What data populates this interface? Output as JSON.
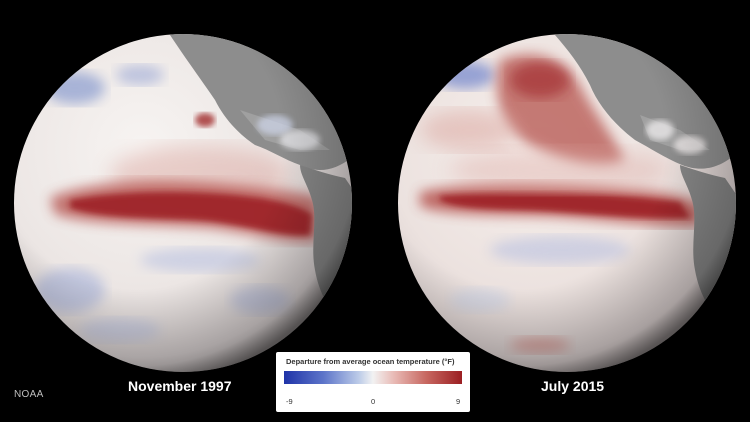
{
  "panels": [
    {
      "caption": "November 1997"
    },
    {
      "caption": "July 2015"
    }
  ],
  "credit": "NOAA",
  "legend": {
    "title": "Departure from average ocean temperature (°F)",
    "min": "-9",
    "mid": "0",
    "max": "9",
    "colors": {
      "cold": "#1f33a8",
      "neutral": "#f2f2f2",
      "warm": "#9b1e22"
    }
  }
}
